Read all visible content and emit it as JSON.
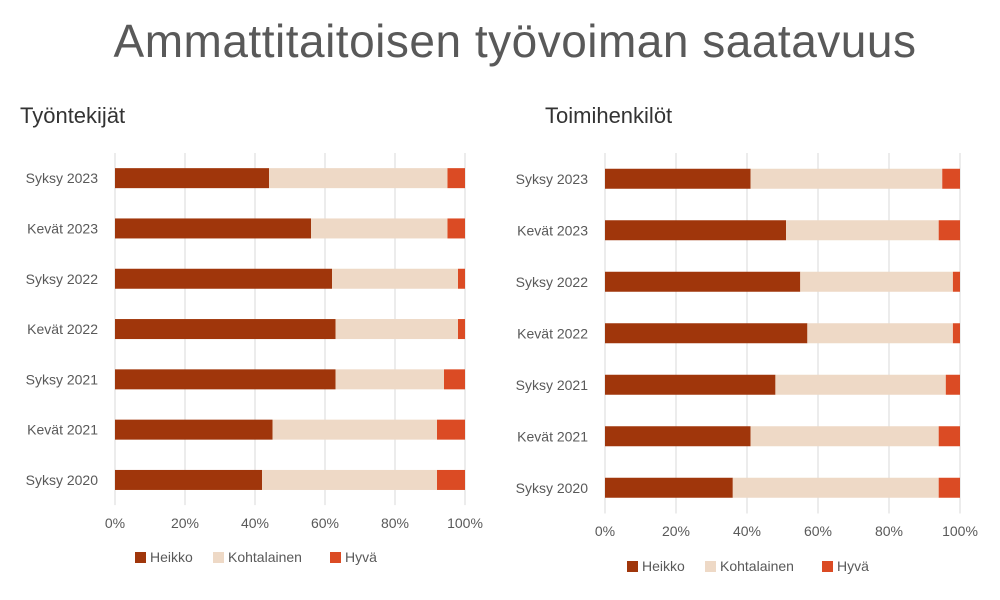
{
  "title": "Ammattitaitoisen työvoiman saatavuus",
  "colors": {
    "heikko": "#A0360B",
    "kohtalainen": "#EED9C6",
    "hyva": "#DB4B24",
    "grid": "#D9D9D9",
    "text": "#595959"
  },
  "chart_data": [
    {
      "type": "bar",
      "orientation": "horizontal-stacked-100",
      "title": "Työntekijät",
      "categories": [
        "Syksy 2023",
        "Kevät 2023",
        "Syksy 2022",
        "Kevät 2022",
        "Syksy 2021",
        "Kevät 2021",
        "Syksy 2020"
      ],
      "series": [
        {
          "name": "Heikko",
          "values": [
            44,
            56,
            62,
            63,
            63,
            45,
            42
          ]
        },
        {
          "name": "Kohtalainen",
          "values": [
            51,
            39,
            36,
            35,
            31,
            47,
            50
          ]
        },
        {
          "name": "Hyvä",
          "values": [
            5,
            5,
            2,
            2,
            6,
            8,
            8
          ]
        }
      ],
      "xlim": [
        0,
        100
      ],
      "xticks": [
        "0%",
        "20%",
        "40%",
        "60%",
        "80%",
        "100%"
      ],
      "legend": "bottom"
    },
    {
      "type": "bar",
      "orientation": "horizontal-stacked-100",
      "title": "Toimihenkilöt",
      "categories": [
        "Syksy 2023",
        "Kevät 2023",
        "Syksy 2022",
        "Kevät 2022",
        "Syksy 2021",
        "Kevät 2021",
        "Syksy 2020"
      ],
      "series": [
        {
          "name": "Heikko",
          "values": [
            41,
            51,
            55,
            57,
            48,
            41,
            36
          ]
        },
        {
          "name": "Kohtalainen",
          "values": [
            54,
            43,
            43,
            41,
            48,
            53,
            58
          ]
        },
        {
          "name": "Hyvä",
          "values": [
            5,
            6,
            2,
            2,
            4,
            6,
            6
          ]
        }
      ],
      "xlim": [
        0,
        100
      ],
      "xticks": [
        "0%",
        "20%",
        "40%",
        "60%",
        "80%",
        "100%"
      ],
      "legend": "bottom"
    }
  ]
}
